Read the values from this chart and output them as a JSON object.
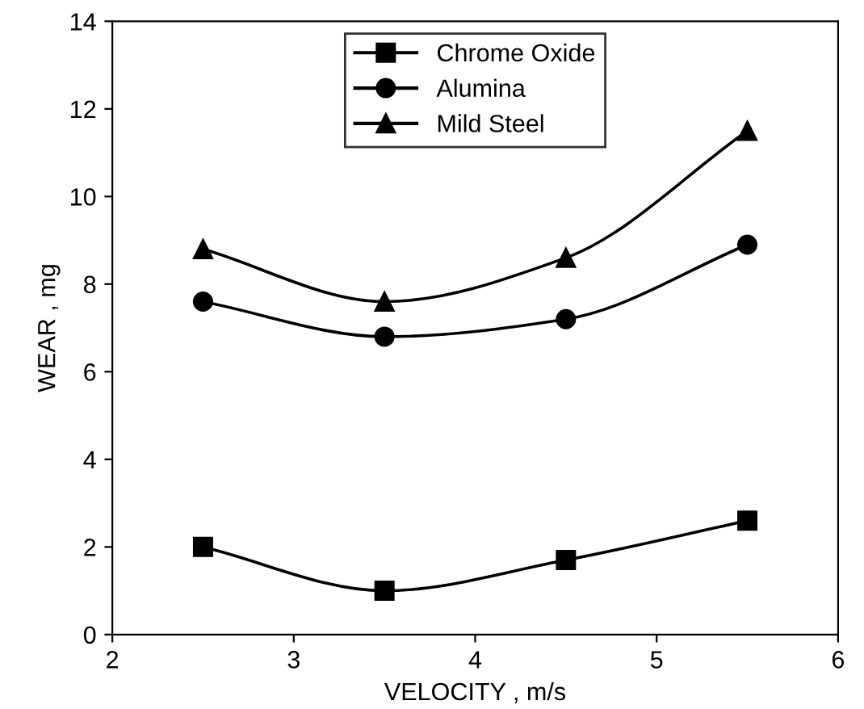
{
  "chart_data": {
    "type": "line",
    "xlabel": "VELOCITY , m/s",
    "ylabel": "WEAR , mg",
    "x": [
      2.5,
      3.5,
      4.5,
      5.5
    ],
    "series": [
      {
        "name": "Chrome Oxide",
        "color": "#000000",
        "marker": "square",
        "values": [
          2.0,
          1.0,
          1.7,
          2.6
        ]
      },
      {
        "name": "Alumina",
        "color": "#000000",
        "marker": "circle",
        "values": [
          7.6,
          6.8,
          7.2,
          8.9
        ]
      },
      {
        "name": "Mild Steel",
        "color": "#000000",
        "marker": "triangle",
        "values": [
          8.8,
          7.6,
          8.6,
          11.5
        ]
      }
    ],
    "xlim": [
      2,
      6
    ],
    "xticks": [
      2,
      3,
      4,
      5,
      6
    ],
    "ylim": [
      0,
      14
    ],
    "yticks": [
      0,
      2,
      4,
      6,
      8,
      10,
      12,
      14
    ],
    "grid": false,
    "legend": "top",
    "line_style": "solid"
  }
}
